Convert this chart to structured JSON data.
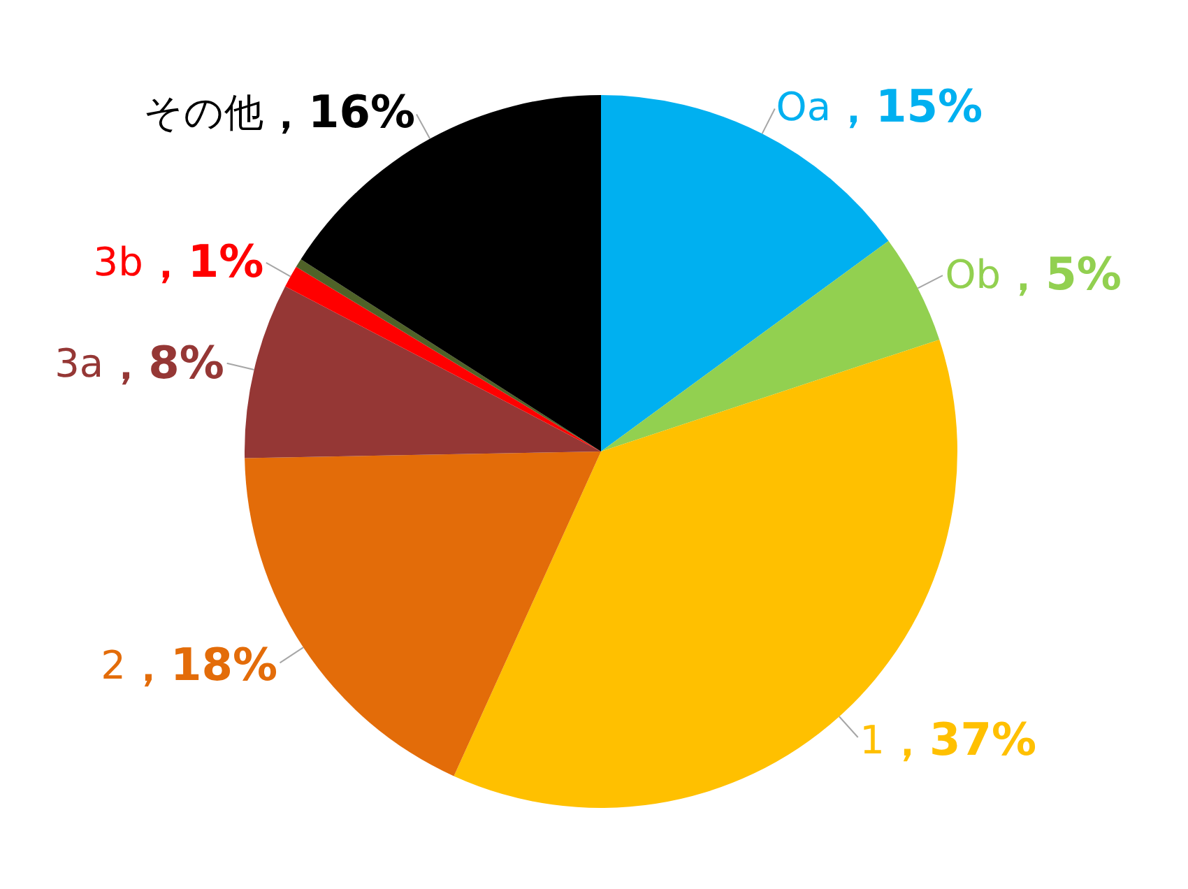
{
  "chart_data": {
    "type": "pie",
    "categories": [
      "Oa",
      "Ob",
      "1",
      "2",
      "3a",
      "3b",
      null,
      "その他"
    ],
    "values": [
      15,
      5,
      37,
      18,
      8,
      1,
      0.4,
      16
    ],
    "colors": [
      "#00b0f0",
      "#92d050",
      "#ffc000",
      "#e36c09",
      "#953735",
      "#ff0000",
      "#4f6228",
      "#000000"
    ],
    "value_labels": [
      "，15%",
      "，5%",
      "，37%",
      "，18%",
      "，8%",
      "，1%",
      null,
      "，16%"
    ],
    "legend": false
  }
}
